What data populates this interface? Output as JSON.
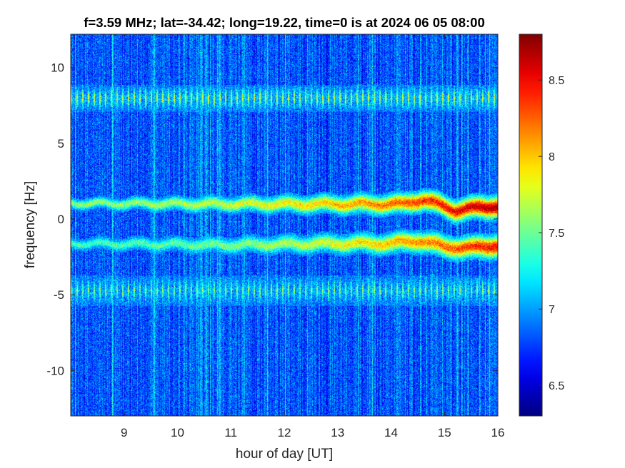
{
  "chart_data": {
    "type": "heatmap",
    "title": "f=3.59 MHz;  lat=-34.42; long=19.22, time=0 is at 2024 06 05 08:00",
    "xlabel": "hour of day [UT]",
    "ylabel": "frequency [Hz]",
    "xlim": [
      8,
      16
    ],
    "ylim": [
      -13,
      12.2
    ],
    "x_ticks": [
      9,
      10,
      11,
      12,
      13,
      14,
      15,
      16
    ],
    "x_tick_labels": [
      "9",
      "10",
      "11",
      "12",
      "13",
      "14",
      "15",
      "16"
    ],
    "y_ticks": [
      10,
      5,
      0,
      -5,
      -10
    ],
    "y_tick_labels": [
      "10",
      "5",
      "0",
      "-5",
      "-10"
    ],
    "colorbar": {
      "colormap": "jet",
      "clim": [
        6.3,
        8.8
      ],
      "ticks": [
        8.5,
        8,
        7.5,
        7,
        6.5
      ],
      "tick_labels": [
        "8.5",
        "8",
        "7.5",
        "7",
        "6.5"
      ]
    },
    "background_level": 6.8,
    "features": [
      {
        "kind": "pulsed-band",
        "center_freq": 8.0,
        "half_width": 0.9,
        "level": 7.8
      },
      {
        "kind": "pulsed-band",
        "center_freq": -4.7,
        "half_width": 1.0,
        "level": 7.6
      },
      {
        "kind": "doppler-trace",
        "points": [
          [
            8,
            1.05
          ],
          [
            11,
            1.0
          ],
          [
            12.5,
            1.0
          ],
          [
            13.5,
            1.0
          ],
          [
            14.2,
            1.0
          ],
          [
            14.6,
            1.3
          ],
          [
            15.2,
            0.6
          ],
          [
            16,
            0.9
          ]
        ],
        "level_start": 7.6,
        "level_end": 8.7
      },
      {
        "kind": "doppler-trace",
        "points": [
          [
            8,
            -1.6
          ],
          [
            11,
            -1.7
          ],
          [
            13,
            -1.6
          ],
          [
            14,
            -1.6
          ],
          [
            14.5,
            -1.4
          ],
          [
            15,
            -1.8
          ],
          [
            15.5,
            -1.9
          ],
          [
            16,
            -1.7
          ]
        ],
        "level_start": 7.4,
        "level_end": 8.5
      }
    ]
  }
}
